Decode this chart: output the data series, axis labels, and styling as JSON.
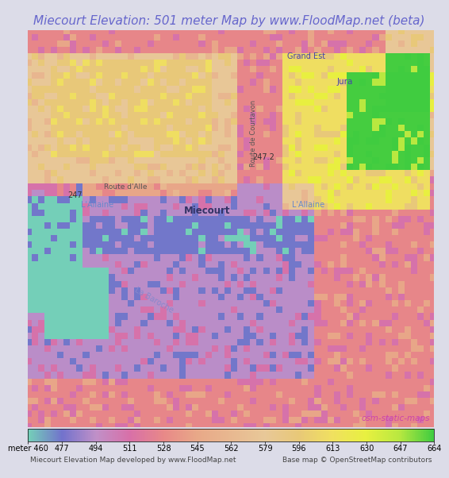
{
  "title": "Miecourt Elevation: 501 meter Map by www.FloodMap.net (beta)",
  "title_color": "#6666cc",
  "title_bg": "#dcdce8",
  "title_fontsize": 11.0,
  "colorbar_values": [
    460,
    477,
    494,
    511,
    528,
    545,
    562,
    579,
    596,
    613,
    630,
    647,
    664
  ],
  "colorbar_colors": [
    "#74cfb8",
    "#7272cc",
    "#c090c8",
    "#d870a8",
    "#e88888",
    "#e8a888",
    "#e8b890",
    "#e8c898",
    "#e8c878",
    "#f0e060",
    "#e8f040",
    "#b8e840",
    "#40cc40"
  ],
  "footer_left": "Miecourt Elevation Map developed by www.FloodMap.net",
  "footer_right": "Base map © OpenStreetMap contributors",
  "osm_label": "osm-static-maps",
  "osm_color": "#cc44aa",
  "fig_width": 5.12,
  "fig_height": 5.82,
  "vmin": 460,
  "vmax": 664,
  "block_size": 8
}
